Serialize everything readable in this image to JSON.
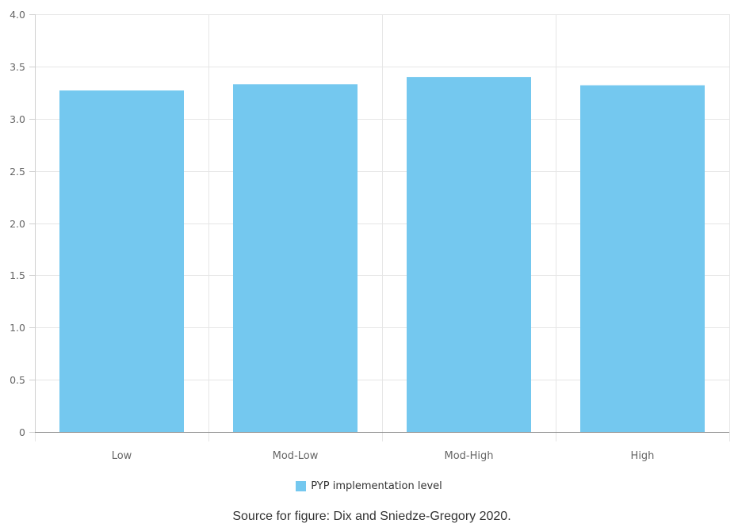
{
  "chart_data": {
    "type": "bar",
    "categories": [
      "Low",
      "Mod-Low",
      "Mod-High",
      "High"
    ],
    "series": [
      {
        "name": "PYP implementation level",
        "values": [
          3.27,
          3.33,
          3.4,
          3.32
        ]
      }
    ],
    "y_ticks": [
      "0",
      "0.5",
      "1.0",
      "1.5",
      "2.0",
      "2.5",
      "3.0",
      "3.5",
      "4.0"
    ],
    "ylim": [
      0,
      4
    ],
    "grid": true,
    "legend_position": "bottom",
    "bar_color": "#74C8EF"
  },
  "caption": "Source for figure: Dix and Sniedze-Gregory 2020."
}
